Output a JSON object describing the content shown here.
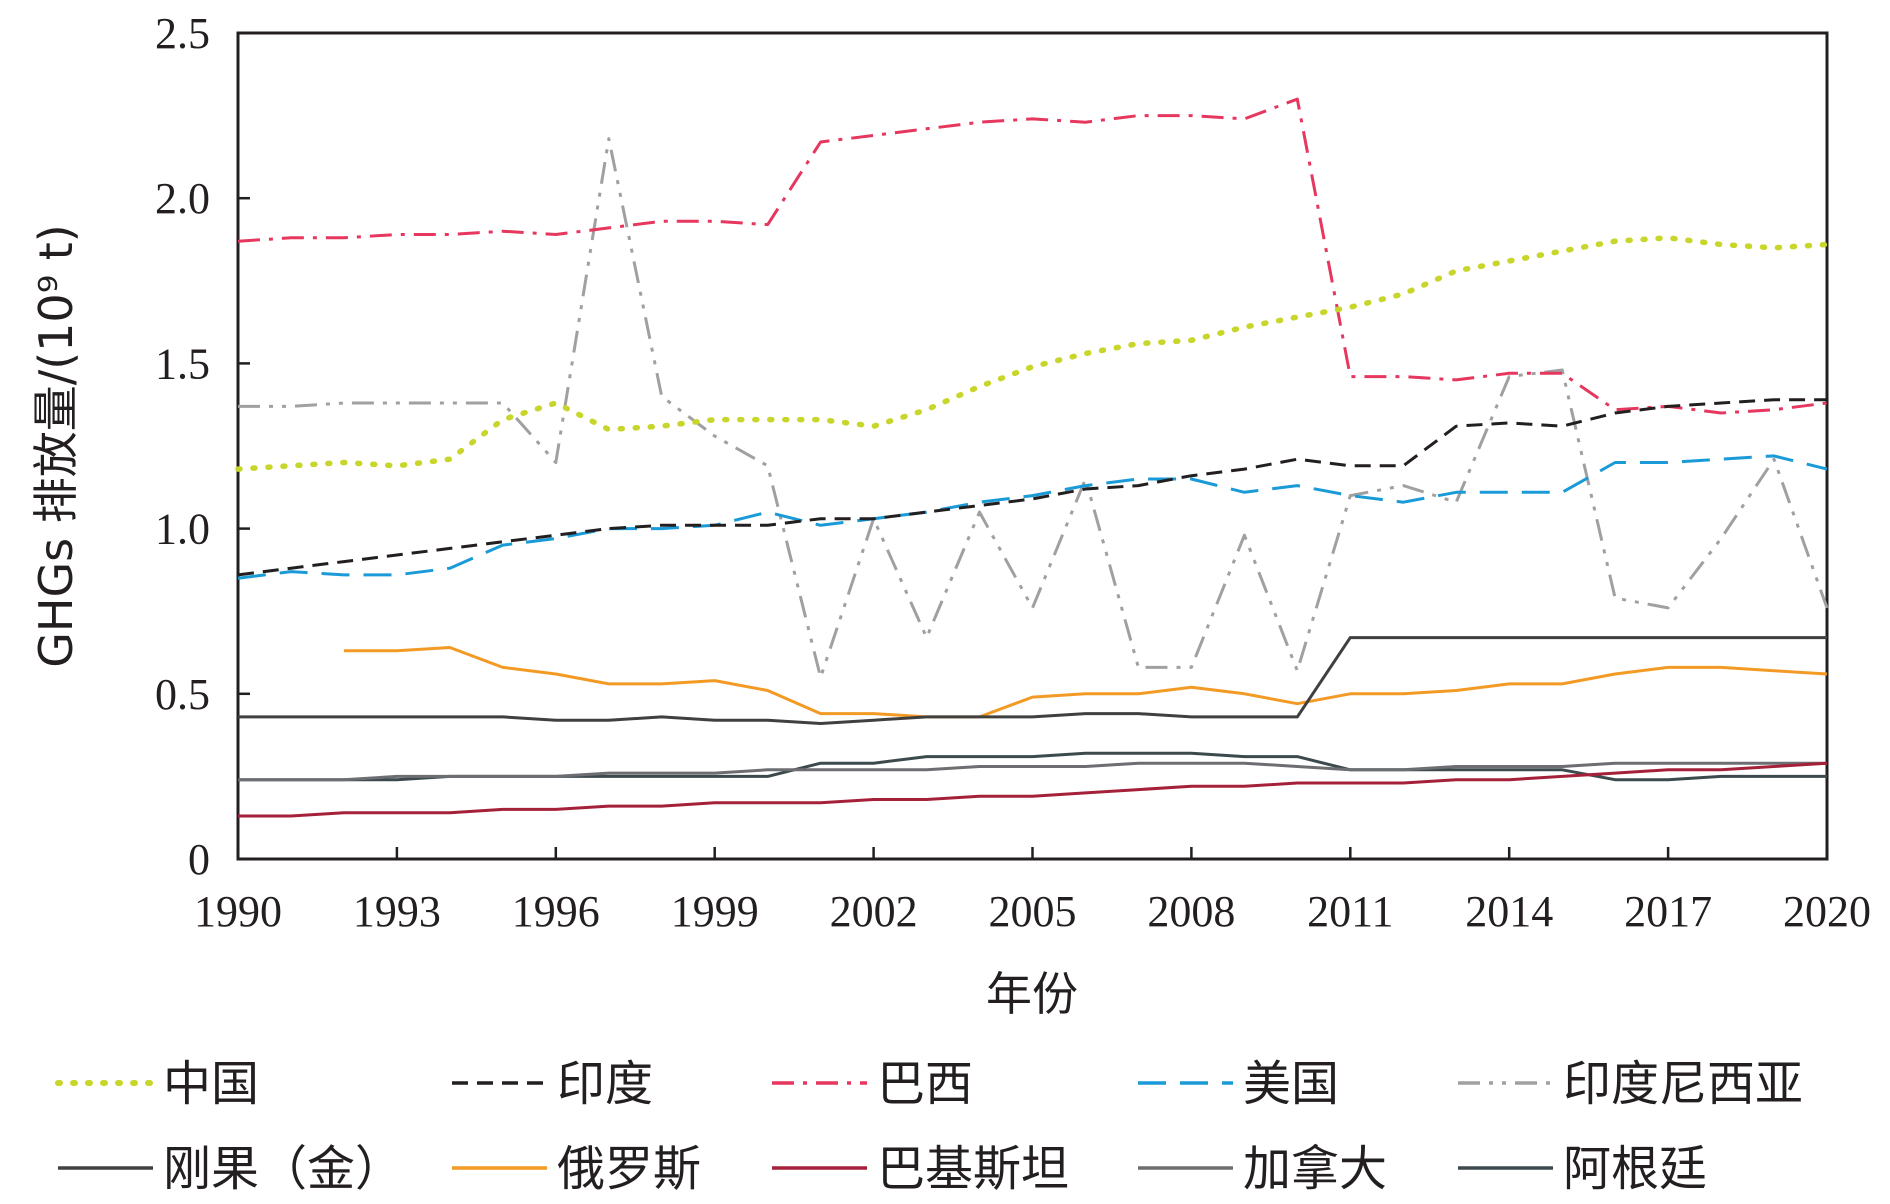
{
  "chart_data": {
    "type": "line",
    "xlabel": "年份",
    "ylabel": "GHGs 排放量/(10⁹ t)",
    "xlim": [
      1990,
      2020
    ],
    "ylim": [
      0,
      2.5
    ],
    "x_ticks": [
      "1990",
      "1993",
      "1996",
      "1999",
      "2002",
      "2005",
      "2008",
      "2011",
      "2014",
      "2017",
      "2020"
    ],
    "y_ticks": [
      "0",
      "0.5",
      "1.0",
      "1.5",
      "2.0",
      "2.5"
    ],
    "grid": false,
    "legend_position": "bottom",
    "x": [
      1990,
      1991,
      1992,
      1993,
      1994,
      1995,
      1996,
      1997,
      1998,
      1999,
      2000,
      2001,
      2002,
      2003,
      2004,
      2005,
      2006,
      2007,
      2008,
      2009,
      2010,
      2011,
      2012,
      2013,
      2014,
      2015,
      2016,
      2017,
      2018,
      2019,
      2020
    ],
    "series": [
      {
        "name": "中国",
        "color": "#c8d62b",
        "dash": "dot",
        "values": [
          1.18,
          1.19,
          1.2,
          1.19,
          1.21,
          1.33,
          1.38,
          1.3,
          1.31,
          1.33,
          1.33,
          1.33,
          1.31,
          1.36,
          1.43,
          1.49,
          1.53,
          1.56,
          1.57,
          1.61,
          1.64,
          1.67,
          1.71,
          1.78,
          1.81,
          1.84,
          1.87,
          1.88,
          1.86,
          1.85,
          1.86
        ]
      },
      {
        "name": "印度",
        "color": "#231f20",
        "dash": "dash",
        "values": [
          0.86,
          0.88,
          0.9,
          0.92,
          0.94,
          0.96,
          0.98,
          1.0,
          1.01,
          1.01,
          1.01,
          1.03,
          1.03,
          1.05,
          1.07,
          1.09,
          1.12,
          1.13,
          1.16,
          1.18,
          1.21,
          1.19,
          1.19,
          1.31,
          1.32,
          1.31,
          1.35,
          1.37,
          1.38,
          1.39,
          1.39
        ]
      },
      {
        "name": "巴西",
        "color": "#e6375f",
        "dash": "dashdot",
        "values": [
          1.87,
          1.88,
          1.88,
          1.89,
          1.89,
          1.9,
          1.89,
          1.91,
          1.93,
          1.93,
          1.92,
          2.17,
          2.19,
          2.21,
          2.23,
          2.24,
          2.23,
          2.25,
          2.25,
          2.24,
          2.3,
          1.46,
          1.46,
          1.45,
          1.47,
          1.47,
          1.36,
          1.37,
          1.35,
          1.36,
          1.38
        ]
      },
      {
        "name": "美国",
        "color": "#1a9bd7",
        "dash": "longdash",
        "values": [
          0.85,
          0.87,
          0.86,
          0.86,
          0.88,
          0.95,
          0.97,
          1.0,
          1.0,
          1.01,
          1.05,
          1.01,
          1.03,
          1.05,
          1.08,
          1.1,
          1.13,
          1.15,
          1.15,
          1.11,
          1.13,
          1.1,
          1.08,
          1.11,
          1.11,
          1.11,
          1.2,
          1.2,
          1.21,
          1.22,
          1.18
        ]
      },
      {
        "name": "印度尼西亚",
        "color": "#a0a0a0",
        "dash": "dashdotdot",
        "values": [
          1.37,
          1.37,
          1.38,
          1.38,
          1.38,
          1.38,
          1.2,
          2.18,
          1.4,
          1.28,
          1.19,
          0.55,
          1.03,
          0.67,
          1.05,
          0.76,
          1.15,
          0.58,
          0.58,
          0.98,
          0.57,
          1.1,
          1.13,
          1.08,
          1.46,
          1.48,
          0.79,
          0.76,
          0.97,
          1.21,
          0.76
        ]
      },
      {
        "name": "刚果（金）",
        "color": "#404041",
        "dash": "solid",
        "values": [
          0.43,
          0.43,
          0.43,
          0.43,
          0.43,
          0.43,
          0.42,
          0.42,
          0.43,
          0.42,
          0.42,
          0.41,
          0.42,
          0.43,
          0.43,
          0.43,
          0.44,
          0.44,
          0.43,
          0.43,
          0.43,
          0.67,
          0.67,
          0.67,
          0.67,
          0.67,
          0.67,
          0.67,
          0.67,
          0.67,
          0.67
        ]
      },
      {
        "name": "俄罗斯",
        "color": "#f39a25",
        "dash": "solid",
        "values": [
          null,
          null,
          0.63,
          0.63,
          0.64,
          0.58,
          0.56,
          0.53,
          0.53,
          0.54,
          0.51,
          0.44,
          0.44,
          0.43,
          0.43,
          0.49,
          0.5,
          0.5,
          0.52,
          0.5,
          0.47,
          0.5,
          0.5,
          0.51,
          0.53,
          0.53,
          0.56,
          0.58,
          0.58,
          0.57,
          0.56
        ]
      },
      {
        "name": "巴基斯坦",
        "color": "#a5213a",
        "dash": "solid",
        "values": [
          0.13,
          0.13,
          0.14,
          0.14,
          0.14,
          0.15,
          0.15,
          0.16,
          0.16,
          0.17,
          0.17,
          0.17,
          0.18,
          0.18,
          0.19,
          0.19,
          0.2,
          0.21,
          0.22,
          0.22,
          0.23,
          0.23,
          0.23,
          0.24,
          0.24,
          0.25,
          0.26,
          0.27,
          0.27,
          0.28,
          0.29
        ]
      },
      {
        "name": "加拿大",
        "color": "#6d6e71",
        "dash": "solid",
        "values": [
          0.24,
          0.24,
          0.24,
          0.25,
          0.25,
          0.25,
          0.25,
          0.26,
          0.26,
          0.26,
          0.27,
          0.27,
          0.27,
          0.27,
          0.28,
          0.28,
          0.28,
          0.29,
          0.29,
          0.29,
          0.28,
          0.27,
          0.27,
          0.28,
          0.28,
          0.28,
          0.29,
          0.29,
          0.29,
          0.29,
          0.29
        ]
      },
      {
        "name": "阿根廷",
        "color": "#3d4a4d",
        "dash": "solid",
        "values": [
          0.24,
          0.24,
          0.24,
          0.24,
          0.25,
          0.25,
          0.25,
          0.25,
          0.25,
          0.25,
          0.25,
          0.29,
          0.29,
          0.31,
          0.31,
          0.31,
          0.32,
          0.32,
          0.32,
          0.31,
          0.31,
          0.27,
          0.27,
          0.27,
          0.27,
          0.27,
          0.24,
          0.24,
          0.25,
          0.25,
          0.25
        ]
      }
    ]
  }
}
